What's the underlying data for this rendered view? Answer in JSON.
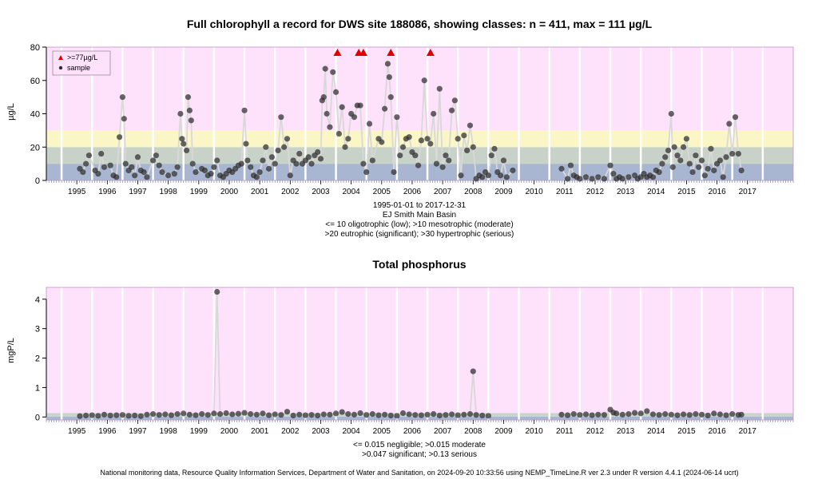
{
  "chart_data": [
    {
      "type": "scatter",
      "title": "Full chlorophyll a record for DWS site 188086, showing classes: n = 411, max = 111 µg/L",
      "ylabel": "µg/L",
      "ylim": [
        0,
        80
      ],
      "yticks": [
        0,
        20,
        40,
        60,
        80
      ],
      "xlim": [
        1994.5,
        2019
      ],
      "x_tick_labels": [
        "1995",
        "1996",
        "1997",
        "1998",
        "1999",
        "2000",
        "2001",
        "2002",
        "2003",
        "2004",
        "2005",
        "2006",
        "2007",
        "2008",
        "2009",
        "2010",
        "2011",
        "2012",
        "2013",
        "2014",
        "2015",
        "2016",
        "2017"
      ],
      "class_bands": [
        {
          "from": 0,
          "to": 10,
          "color": "#a9b6d2"
        },
        {
          "from": 10,
          "to": 20,
          "color": "#c8d2c8"
        },
        {
          "from": 20,
          "to": 30,
          "color": "#fbf6c6"
        },
        {
          "from": 30,
          "to": 80,
          "color": "#fee1fb"
        }
      ],
      "legend": {
        "position": "top-left",
        "entries": [
          ">=77µg/L",
          "sample"
        ]
      },
      "exceedances_x": [
        2004.05,
        2004.75,
        2004.9,
        2005.8,
        2007.1
      ],
      "samples": [
        [
          1995.6,
          7
        ],
        [
          1995.7,
          5
        ],
        [
          1995.8,
          10
        ],
        [
          1995.9,
          15
        ],
        [
          1996.1,
          6
        ],
        [
          1996.2,
          4
        ],
        [
          1996.3,
          16
        ],
        [
          1996.4,
          8
        ],
        [
          1996.6,
          9
        ],
        [
          1996.7,
          3
        ],
        [
          1996.8,
          2
        ],
        [
          1996.9,
          26
        ],
        [
          1997.0,
          50
        ],
        [
          1997.05,
          37
        ],
        [
          1997.1,
          10
        ],
        [
          1997.2,
          6
        ],
        [
          1997.3,
          8
        ],
        [
          1997.4,
          3
        ],
        [
          1997.5,
          14
        ],
        [
          1997.6,
          6
        ],
        [
          1997.7,
          5
        ],
        [
          1997.8,
          2
        ],
        [
          1998.0,
          12
        ],
        [
          1998.1,
          15
        ],
        [
          1998.2,
          9
        ],
        [
          1998.3,
          5
        ],
        [
          1998.5,
          3
        ],
        [
          1998.7,
          4
        ],
        [
          1998.8,
          8
        ],
        [
          1998.9,
          40
        ],
        [
          1998.95,
          25
        ],
        [
          1999.0,
          22
        ],
        [
          1999.1,
          18
        ],
        [
          1999.15,
          50
        ],
        [
          1999.2,
          42
        ],
        [
          1999.25,
          36
        ],
        [
          1999.3,
          10
        ],
        [
          1999.4,
          5
        ],
        [
          1999.6,
          7
        ],
        [
          1999.7,
          6
        ],
        [
          1999.8,
          3
        ],
        [
          1999.9,
          4
        ],
        [
          2000.0,
          8
        ],
        [
          2000.1,
          12
        ],
        [
          2000.2,
          3
        ],
        [
          2000.3,
          2
        ],
        [
          2000.4,
          4
        ],
        [
          2000.5,
          6
        ],
        [
          2000.6,
          5
        ],
        [
          2000.7,
          7
        ],
        [
          2000.8,
          9
        ],
        [
          2000.9,
          10
        ],
        [
          2001.0,
          42
        ],
        [
          2001.05,
          22
        ],
        [
          2001.1,
          12
        ],
        [
          2001.2,
          8
        ],
        [
          2001.3,
          3
        ],
        [
          2001.4,
          2
        ],
        [
          2001.5,
          5
        ],
        [
          2001.6,
          12
        ],
        [
          2001.7,
          20
        ],
        [
          2001.8,
          7
        ],
        [
          2001.9,
          14
        ],
        [
          2002.0,
          10
        ],
        [
          2002.1,
          18
        ],
        [
          2002.2,
          38
        ],
        [
          2002.3,
          20
        ],
        [
          2002.4,
          25
        ],
        [
          2002.5,
          3
        ],
        [
          2002.6,
          12
        ],
        [
          2002.7,
          10
        ],
        [
          2002.8,
          16
        ],
        [
          2002.9,
          10
        ],
        [
          2003.0,
          12
        ],
        [
          2003.1,
          14
        ],
        [
          2003.2,
          10
        ],
        [
          2003.3,
          15
        ],
        [
          2003.4,
          17
        ],
        [
          2003.5,
          13
        ],
        [
          2003.55,
          48
        ],
        [
          2003.6,
          50
        ],
        [
          2003.65,
          67
        ],
        [
          2003.7,
          40
        ],
        [
          2003.8,
          32
        ],
        [
          2003.9,
          65
        ],
        [
          2004.0,
          53
        ],
        [
          2004.1,
          28
        ],
        [
          2004.2,
          44
        ],
        [
          2004.3,
          20
        ],
        [
          2004.4,
          25
        ],
        [
          2004.5,
          40
        ],
        [
          2004.6,
          38
        ],
        [
          2004.7,
          45
        ],
        [
          2004.8,
          45
        ],
        [
          2004.9,
          10
        ],
        [
          2005.0,
          5
        ],
        [
          2005.1,
          34
        ],
        [
          2005.2,
          12
        ],
        [
          2005.4,
          25
        ],
        [
          2005.5,
          23
        ],
        [
          2005.6,
          43
        ],
        [
          2005.7,
          70
        ],
        [
          2005.75,
          62
        ],
        [
          2005.8,
          50
        ],
        [
          2005.9,
          5
        ],
        [
          2006.0,
          38
        ],
        [
          2006.1,
          15
        ],
        [
          2006.2,
          20
        ],
        [
          2006.3,
          25
        ],
        [
          2006.4,
          26
        ],
        [
          2006.5,
          17
        ],
        [
          2006.6,
          15
        ],
        [
          2006.7,
          9
        ],
        [
          2006.8,
          24
        ],
        [
          2006.9,
          60
        ],
        [
          2007.0,
          25
        ],
        [
          2007.1,
          22
        ],
        [
          2007.2,
          40
        ],
        [
          2007.3,
          10
        ],
        [
          2007.4,
          55
        ],
        [
          2007.5,
          8
        ],
        [
          2007.6,
          15
        ],
        [
          2007.7,
          12
        ],
        [
          2007.8,
          42
        ],
        [
          2007.9,
          48
        ],
        [
          2008.0,
          25
        ],
        [
          2008.1,
          3
        ],
        [
          2008.2,
          27
        ],
        [
          2008.3,
          18
        ],
        [
          2008.4,
          33
        ],
        [
          2008.5,
          20
        ],
        [
          2008.6,
          1
        ],
        [
          2008.7,
          3
        ],
        [
          2008.8,
          2
        ],
        [
          2008.9,
          5
        ],
        [
          2009.0,
          3
        ],
        [
          2009.1,
          15
        ],
        [
          2009.2,
          19
        ],
        [
          2009.3,
          5
        ],
        [
          2009.4,
          3
        ],
        [
          2009.5,
          12
        ],
        [
          2009.6,
          2
        ],
        [
          2009.8,
          6
        ],
        [
          2011.4,
          7
        ],
        [
          2011.6,
          1
        ],
        [
          2011.7,
          9
        ],
        [
          2011.8,
          3
        ],
        [
          2011.9,
          2
        ],
        [
          2012.0,
          1
        ],
        [
          2012.2,
          2
        ],
        [
          2012.4,
          1
        ],
        [
          2012.6,
          2
        ],
        [
          2012.8,
          1
        ],
        [
          2013.0,
          9
        ],
        [
          2013.1,
          4
        ],
        [
          2013.2,
          1
        ],
        [
          2013.3,
          2
        ],
        [
          2013.4,
          1
        ],
        [
          2013.6,
          2
        ],
        [
          2013.8,
          3
        ],
        [
          2013.9,
          1
        ],
        [
          2014.0,
          2
        ],
        [
          2014.1,
          4
        ],
        [
          2014.2,
          2
        ],
        [
          2014.3,
          3
        ],
        [
          2014.4,
          2
        ],
        [
          2014.5,
          6
        ],
        [
          2014.6,
          5
        ],
        [
          2014.7,
          10
        ],
        [
          2014.8,
          14
        ],
        [
          2014.9,
          18
        ],
        [
          2015.0,
          40
        ],
        [
          2015.05,
          8
        ],
        [
          2015.1,
          20
        ],
        [
          2015.2,
          15
        ],
        [
          2015.3,
          12
        ],
        [
          2015.4,
          20
        ],
        [
          2015.5,
          25
        ],
        [
          2015.6,
          10
        ],
        [
          2015.7,
          5
        ],
        [
          2015.8,
          15
        ],
        [
          2015.9,
          8
        ],
        [
          2016.0,
          12
        ],
        [
          2016.1,
          3
        ],
        [
          2016.2,
          7
        ],
        [
          2016.3,
          19
        ],
        [
          2016.4,
          6
        ],
        [
          2016.5,
          10
        ],
        [
          2016.6,
          12
        ],
        [
          2016.7,
          2
        ],
        [
          2016.8,
          14
        ],
        [
          2016.9,
          34
        ],
        [
          2017.0,
          16
        ],
        [
          2017.1,
          38
        ],
        [
          2017.2,
          16
        ],
        [
          2017.3,
          6
        ]
      ]
    },
    {
      "type": "scatter",
      "title": "Total phosphorus",
      "ylabel": "mgP/L",
      "ylim": [
        -0.1,
        4.4
      ],
      "yticks": [
        0,
        1,
        2,
        3,
        4
      ],
      "xlim": [
        1994.5,
        2019
      ],
      "x_tick_labels": [
        "1995",
        "1996",
        "1997",
        "1998",
        "1999",
        "2000",
        "2001",
        "2002",
        "2003",
        "2004",
        "2005",
        "2006",
        "2007",
        "2008",
        "2009",
        "2010",
        "2011",
        "2012",
        "2013",
        "2014",
        "2015",
        "2016",
        "2017"
      ],
      "class_bands": [
        {
          "from": -0.1,
          "to": 0.015,
          "color": "#a9b6d2"
        },
        {
          "from": 0.015,
          "to": 0.047,
          "color": "#c8d2c8"
        },
        {
          "from": 0.047,
          "to": 0.13,
          "color": "#c8d2c8"
        },
        {
          "from": 0.13,
          "to": 4.4,
          "color": "#fee1fb"
        }
      ],
      "samples": [
        [
          1995.6,
          0.03
        ],
        [
          1995.8,
          0.05
        ],
        [
          1996.0,
          0.06
        ],
        [
          1996.2,
          0.04
        ],
        [
          1996.4,
          0.08
        ],
        [
          1996.6,
          0.05
        ],
        [
          1996.8,
          0.06
        ],
        [
          1997.0,
          0.07
        ],
        [
          1997.2,
          0.04
        ],
        [
          1997.4,
          0.05
        ],
        [
          1997.6,
          0.03
        ],
        [
          1997.8,
          0.08
        ],
        [
          1998.0,
          0.1
        ],
        [
          1998.2,
          0.07
        ],
        [
          1998.4,
          0.09
        ],
        [
          1998.6,
          0.06
        ],
        [
          1998.8,
          0.1
        ],
        [
          1999.0,
          0.12
        ],
        [
          1999.2,
          0.08
        ],
        [
          1999.4,
          0.06
        ],
        [
          1999.6,
          0.1
        ],
        [
          1999.8,
          0.07
        ],
        [
          2000.0,
          0.12
        ],
        [
          2000.1,
          4.25
        ],
        [
          2000.2,
          0.1
        ],
        [
          2000.4,
          0.13
        ],
        [
          2000.6,
          0.09
        ],
        [
          2000.8,
          0.11
        ],
        [
          2001.0,
          0.14
        ],
        [
          2001.2,
          0.1
        ],
        [
          2001.4,
          0.08
        ],
        [
          2001.6,
          0.12
        ],
        [
          2001.8,
          0.06
        ],
        [
          2002.0,
          0.09
        ],
        [
          2002.2,
          0.07
        ],
        [
          2002.4,
          0.18
        ],
        [
          2002.6,
          0.05
        ],
        [
          2002.8,
          0.08
        ],
        [
          2003.0,
          0.06
        ],
        [
          2003.2,
          0.07
        ],
        [
          2003.4,
          0.05
        ],
        [
          2003.6,
          0.09
        ],
        [
          2003.8,
          0.08
        ],
        [
          2004.0,
          0.12
        ],
        [
          2004.2,
          0.17
        ],
        [
          2004.4,
          0.1
        ],
        [
          2004.6,
          0.08
        ],
        [
          2004.8,
          0.13
        ],
        [
          2005.0,
          0.07
        ],
        [
          2005.2,
          0.1
        ],
        [
          2005.4,
          0.06
        ],
        [
          2005.6,
          0.08
        ],
        [
          2005.8,
          0.05
        ],
        [
          2006.0,
          0.04
        ],
        [
          2006.2,
          0.13
        ],
        [
          2006.4,
          0.09
        ],
        [
          2006.6,
          0.07
        ],
        [
          2006.8,
          0.06
        ],
        [
          2007.0,
          0.08
        ],
        [
          2007.2,
          0.1
        ],
        [
          2007.4,
          0.05
        ],
        [
          2007.6,
          0.07
        ],
        [
          2007.8,
          0.09
        ],
        [
          2008.0,
          0.06
        ],
        [
          2008.2,
          0.08
        ],
        [
          2008.4,
          0.1
        ],
        [
          2008.5,
          1.55
        ],
        [
          2008.6,
          0.07
        ],
        [
          2008.8,
          0.05
        ],
        [
          2009.0,
          0.04
        ],
        [
          2011.4,
          0.08
        ],
        [
          2011.6,
          0.06
        ],
        [
          2011.8,
          0.1
        ],
        [
          2012.0,
          0.07
        ],
        [
          2012.2,
          0.09
        ],
        [
          2012.4,
          0.06
        ],
        [
          2012.6,
          0.08
        ],
        [
          2012.8,
          0.07
        ],
        [
          2013.0,
          0.25
        ],
        [
          2013.1,
          0.15
        ],
        [
          2013.2,
          0.12
        ],
        [
          2013.4,
          0.08
        ],
        [
          2013.6,
          0.1
        ],
        [
          2013.8,
          0.14
        ],
        [
          2014.0,
          0.12
        ],
        [
          2014.2,
          0.2
        ],
        [
          2014.4,
          0.09
        ],
        [
          2014.6,
          0.07
        ],
        [
          2014.8,
          0.1
        ],
        [
          2015.0,
          0.08
        ],
        [
          2015.2,
          0.06
        ],
        [
          2015.4,
          0.09
        ],
        [
          2015.6,
          0.07
        ],
        [
          2015.8,
          0.1
        ],
        [
          2016.0,
          0.08
        ],
        [
          2016.2,
          0.05
        ],
        [
          2016.4,
          0.12
        ],
        [
          2016.6,
          0.09
        ],
        [
          2016.8,
          0.06
        ],
        [
          2017.0,
          0.1
        ],
        [
          2017.2,
          0.07
        ],
        [
          2017.3,
          0.08
        ]
      ]
    }
  ],
  "captions": {
    "chart1_line1": "1995-01-01 to 2017-12-31",
    "chart1_line2": "EJ Smith Main Basin",
    "chart1_line3": "<= 10 oligotrophic (low); >10 mesotrophic (moderate)",
    "chart1_line4": ">20 eutrophic (significant); >30 hypertrophic (serious)",
    "chart2_line1": "<= 0.015 negligible; >0.015 moderate",
    "chart2_line2": ">0.047 significant; >0.13 serious"
  },
  "footer": "National monitoring data, Resource Quality Information Services, Department of Water and Sanitation, on 2024-09-20 10:33:56 using NEMP_TimeLine.R ver 2.3 under R version 4.4.1 (2024-06-14 ucrt)"
}
